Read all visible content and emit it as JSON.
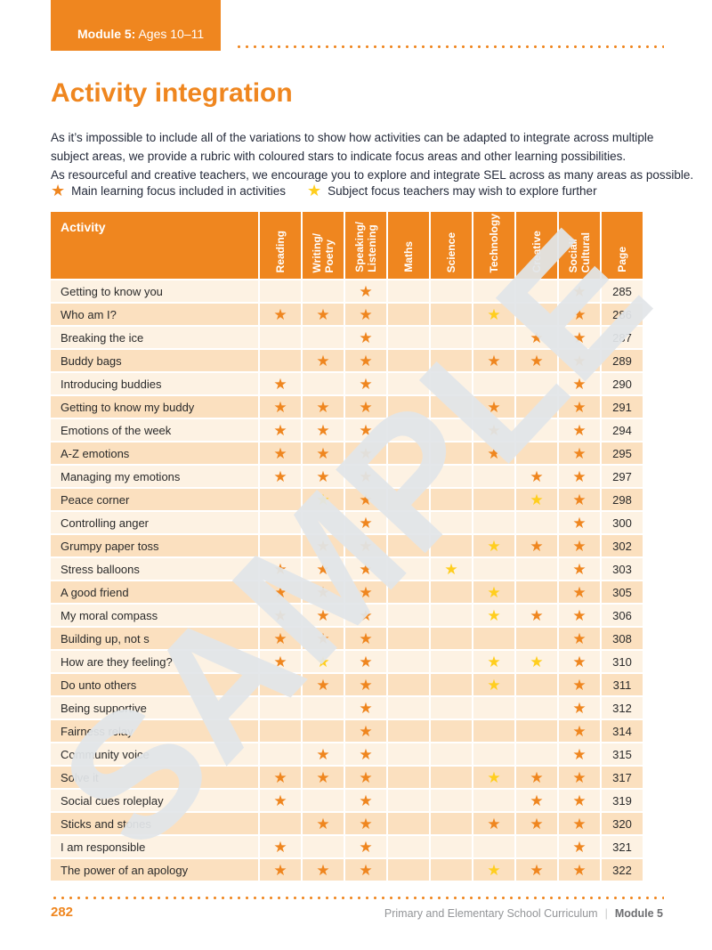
{
  "module_tab": {
    "bold": "Module 5:",
    "rest": " Ages 10–11"
  },
  "title": "Activity integration",
  "intro_lines": [
    "As it’s impossible to include all of the variations to show how activities can be adapted to integrate across multiple",
    "subject areas, we provide a rubric with coloured stars to indicate focus areas and other learning possibilities.",
    "As resourceful and creative teachers, we encourage you to explore and integrate SEL across as many areas as possible."
  ],
  "icons": {
    "star_glyph": "★"
  },
  "legend": [
    {
      "star_color": "#EF861F",
      "label": "Main learning focus included in activities"
    },
    {
      "star_color": "#FFCE1E",
      "label": "Subject focus teachers may wish to explore further"
    }
  ],
  "table": {
    "activity_header": "Activity",
    "page_header": "Page",
    "subject_columns": [
      "Reading",
      "Writing/\nPoetry",
      "Speaking/\nListening",
      "Maths",
      "Science",
      "Technology",
      "Creative",
      "Social/\nCultural"
    ],
    "star_colors": {
      "o": "#EF861F",
      "y": "#FFCE1E"
    },
    "rows": [
      {
        "activity": "Getting to know you",
        "stars": [
          "",
          "",
          "o",
          "",
          "",
          "",
          "",
          "o"
        ],
        "page": "285"
      },
      {
        "activity": "Who am I?",
        "stars": [
          "o",
          "o",
          "o",
          "",
          "",
          "y",
          "",
          "o"
        ],
        "page": "286"
      },
      {
        "activity": "Breaking the ice",
        "stars": [
          "",
          "",
          "o",
          "",
          "",
          "",
          "o",
          "o"
        ],
        "page": "287"
      },
      {
        "activity": "Buddy bags",
        "stars": [
          "",
          "o",
          "o",
          "",
          "",
          "o",
          "o",
          "o"
        ],
        "page": "289"
      },
      {
        "activity": "Introducing buddies",
        "stars": [
          "o",
          "",
          "o",
          "",
          "",
          "",
          "",
          "o"
        ],
        "page": "290"
      },
      {
        "activity": "Getting to know my buddy",
        "stars": [
          "o",
          "o",
          "o",
          "",
          "",
          "o",
          "",
          "o"
        ],
        "page": "291"
      },
      {
        "activity": "Emotions of the week",
        "stars": [
          "o",
          "o",
          "o",
          "",
          "",
          "o",
          "",
          "o"
        ],
        "page": "294"
      },
      {
        "activity": "A-Z emotions",
        "stars": [
          "o",
          "o",
          "o",
          "",
          "",
          "o",
          "",
          "o"
        ],
        "page": "295"
      },
      {
        "activity": "Managing my emotions",
        "stars": [
          "o",
          "o",
          "o",
          "",
          "",
          "",
          "o",
          "o"
        ],
        "page": "297"
      },
      {
        "activity": "Peace corner",
        "stars": [
          "",
          "y",
          "o",
          "",
          "",
          "",
          "y",
          "o"
        ],
        "page": "298"
      },
      {
        "activity": "Controlling anger",
        "stars": [
          "",
          "",
          "o",
          "",
          "",
          "",
          "",
          "o"
        ],
        "page": "300"
      },
      {
        "activity": "Grumpy paper toss",
        "stars": [
          "",
          "o",
          "o",
          "",
          "",
          "y",
          "o",
          "o"
        ],
        "page": "302"
      },
      {
        "activity": "Stress balloons",
        "stars": [
          "o",
          "o",
          "o",
          "",
          "y",
          "",
          "",
          "o"
        ],
        "page": "303"
      },
      {
        "activity": "A good friend",
        "stars": [
          "o",
          "o",
          "o",
          "",
          "",
          "y",
          "",
          "o"
        ],
        "page": "305"
      },
      {
        "activity": "My moral compass",
        "stars": [
          "o",
          "o",
          "o",
          "",
          "",
          "y",
          "o",
          "o"
        ],
        "page": "306"
      },
      {
        "activity": "Building up, not s",
        "stars": [
          "o",
          "o",
          "o",
          "",
          "",
          "",
          "",
          "o"
        ],
        "page": "308"
      },
      {
        "activity": "How are they feeling?",
        "stars": [
          "o",
          "y",
          "o",
          "",
          "",
          "y",
          "y",
          "o"
        ],
        "page": "310"
      },
      {
        "activity": "Do unto others",
        "stars": [
          "",
          "o",
          "o",
          "",
          "",
          "y",
          "",
          "o"
        ],
        "page": "311"
      },
      {
        "activity": "Being supportive",
        "stars": [
          "",
          "",
          "o",
          "",
          "",
          "",
          "",
          "o"
        ],
        "page": "312"
      },
      {
        "activity": "Fairness relay",
        "stars": [
          "",
          "",
          "o",
          "",
          "",
          "",
          "",
          "o"
        ],
        "page": "314"
      },
      {
        "activity": "Community voice",
        "stars": [
          "",
          "o",
          "o",
          "",
          "",
          "",
          "",
          "o"
        ],
        "page": "315"
      },
      {
        "activity": "Solve it",
        "stars": [
          "o",
          "o",
          "o",
          "",
          "",
          "y",
          "o",
          "o"
        ],
        "page": "317"
      },
      {
        "activity": "Social cues roleplay",
        "stars": [
          "o",
          "",
          "o",
          "",
          "",
          "",
          "o",
          "o"
        ],
        "page": "319"
      },
      {
        "activity": "Sticks and stones",
        "stars": [
          "",
          "o",
          "o",
          "",
          "",
          "o",
          "o",
          "o"
        ],
        "page": "320"
      },
      {
        "activity": "I am responsible",
        "stars": [
          "o",
          "",
          "o",
          "",
          "",
          "",
          "",
          "o"
        ],
        "page": "321"
      },
      {
        "activity": "The power of an apology",
        "stars": [
          "o",
          "o",
          "o",
          "",
          "",
          "y",
          "o",
          "o"
        ],
        "page": "322"
      }
    ]
  },
  "watermark": "SAMPLE",
  "footer": {
    "page_number": "282",
    "right_text": "Primary and Elementary School Curriculum",
    "separator": "|",
    "right_bold": "Module 5"
  },
  "colors": {
    "accent": "#EF861F",
    "star_orange": "#EF861F",
    "star_yellow": "#FFCE1E",
    "row_light": "#FDF2E3",
    "row_dark": "#FBE0BF",
    "watermark": "#E2E6E9"
  }
}
